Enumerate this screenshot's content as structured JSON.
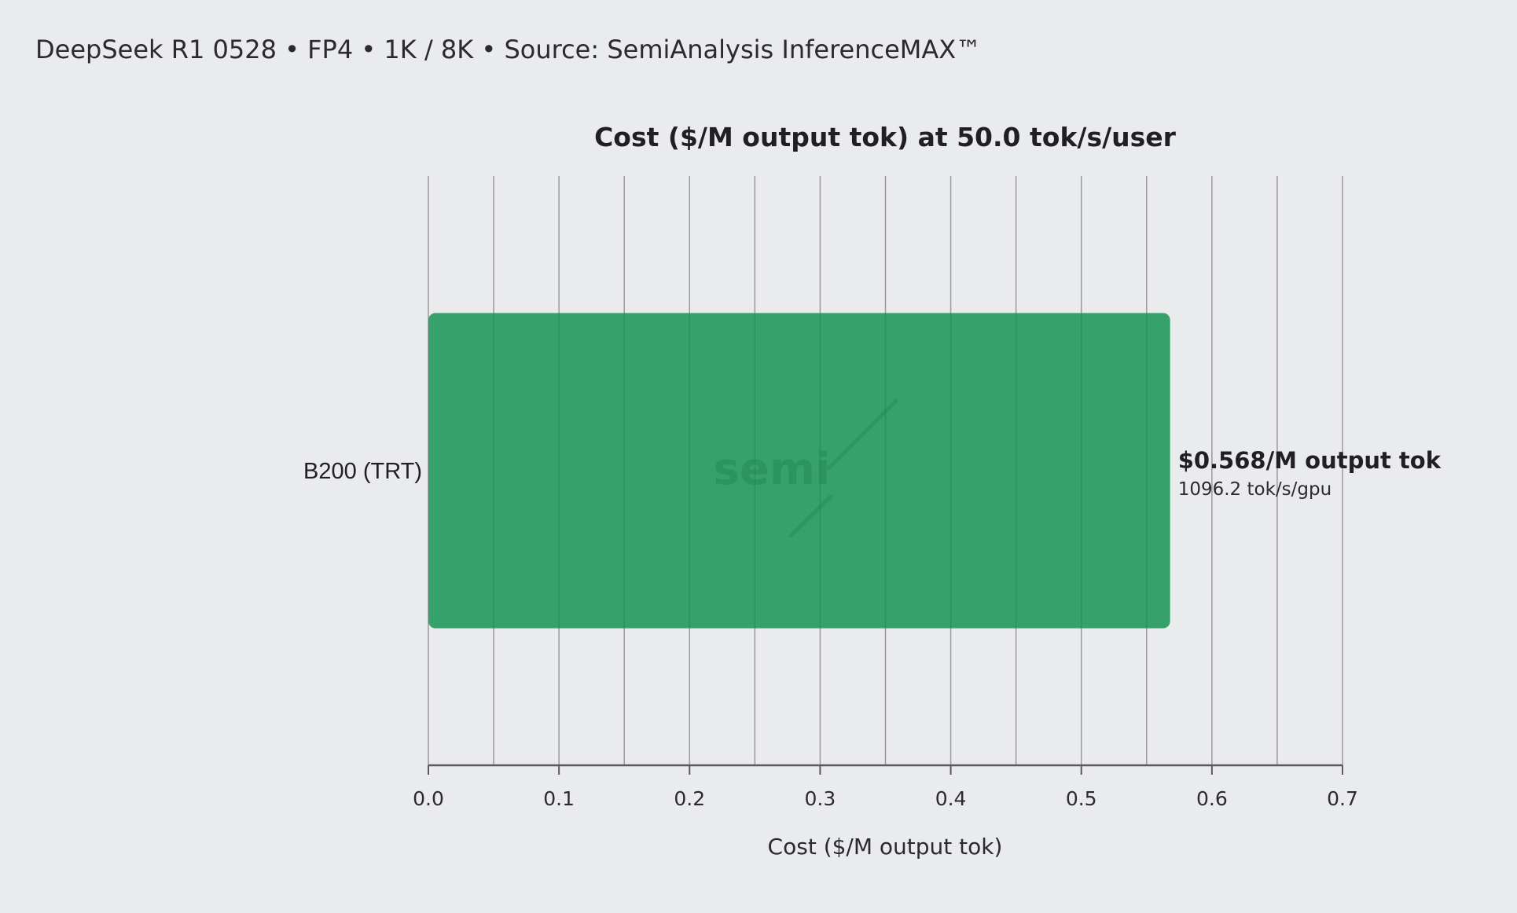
{
  "header": {
    "subtitle": "DeepSeek R1 0528 • FP4 • 1K / 8K • Source: SemiAnalysis InferenceMAX™"
  },
  "watermark": {
    "text": "semi"
  },
  "chart_data": {
    "type": "bar",
    "orientation": "horizontal",
    "title": "Cost ($/M output tok) at 50.0 tok/s/user",
    "xlabel": "Cost ($/M output tok)",
    "ylabel": "",
    "xlim": [
      0,
      0.7
    ],
    "xticks": [
      0.0,
      0.1,
      0.2,
      0.3,
      0.4,
      0.5,
      0.6,
      0.7
    ],
    "xtick_labels": [
      "0.0",
      "0.1",
      "0.2",
      "0.3",
      "0.4",
      "0.5",
      "0.6",
      "0.7"
    ],
    "grid_step": 0.05,
    "grid": true,
    "categories": [
      "B200 (TRT)"
    ],
    "values": [
      0.568
    ],
    "data_labels": [
      "$0.568/M output tok"
    ],
    "data_sublabels": [
      "1096.2 tok/s/gpu"
    ],
    "colors": {
      "bar": "#319e66",
      "grid": "#9a9a9e",
      "axis": "#5a5a60"
    }
  }
}
